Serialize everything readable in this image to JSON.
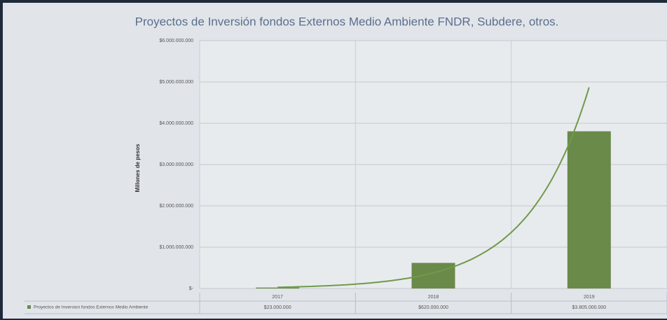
{
  "chart_data": {
    "type": "bar",
    "title": "Proyectos  de Inversión fondos Externos Medio Ambiente FNDR, Subdere, otros.",
    "y_label": "Millones de pesos",
    "categories": [
      "2017",
      "2018",
      "2019"
    ],
    "series": [
      {
        "name": "Proyectos  de Inversion fondos Externos Medio Ambiente",
        "color": "#6a8a4a",
        "values": [
          23000000,
          620000000,
          3805000000
        ],
        "value_labels": [
          "$23.000.000",
          "$620.000.000",
          "$3.805.000.000"
        ]
      }
    ],
    "trendline": "exponential",
    "trendline_color": "#6f9a4a",
    "ylim": [
      0,
      6000000000
    ],
    "yticks": [
      {
        "value": 0,
        "label": "$-"
      },
      {
        "value": 1000000000,
        "label": "$1.000.000.000"
      },
      {
        "value": 2000000000,
        "label": "$2.000.000.000"
      },
      {
        "value": 3000000000,
        "label": "$3.000.000.000"
      },
      {
        "value": 4000000000,
        "label": "$4.000.000.000"
      },
      {
        "value": 5000000000,
        "label": "$5.000.000.000"
      },
      {
        "value": 6000000000,
        "label": "$6.000.000.000"
      }
    ],
    "grid": true,
    "data_table": true
  }
}
